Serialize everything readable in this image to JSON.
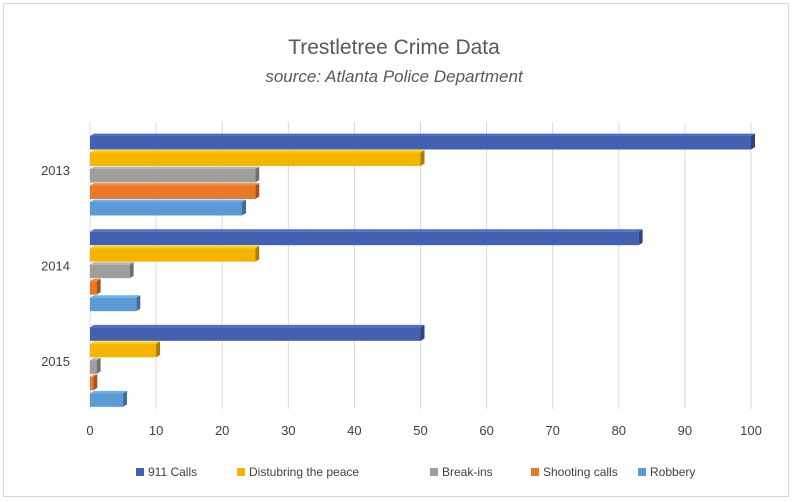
{
  "chart_data": {
    "type": "bar",
    "orientation": "horizontal",
    "title": "Trestletree Crime Data",
    "subtitle": "source: Atlanta Police Department",
    "categories": [
      "2013",
      "2014",
      "2015"
    ],
    "series": [
      {
        "name": "911 Calls",
        "color": "#4460b0",
        "values": [
          100,
          83,
          50
        ]
      },
      {
        "name": "Distubring the peace",
        "color": "#f5b400",
        "values": [
          50,
          25,
          10
        ]
      },
      {
        "name": "Break-ins",
        "color": "#9e9e9e",
        "values": [
          25,
          6,
          1
        ]
      },
      {
        "name": "Shooting calls",
        "color": "#e8782a",
        "values": [
          25,
          1,
          0.5
        ]
      },
      {
        "name": "Robbery",
        "color": "#5a9bd5",
        "values": [
          23,
          7,
          5
        ]
      }
    ],
    "xlim": [
      0,
      100
    ],
    "xticks": [
      "0",
      "10",
      "20",
      "30",
      "40",
      "50",
      "60",
      "70",
      "80",
      "90",
      "100"
    ],
    "grid": true,
    "legend": "bottom"
  }
}
